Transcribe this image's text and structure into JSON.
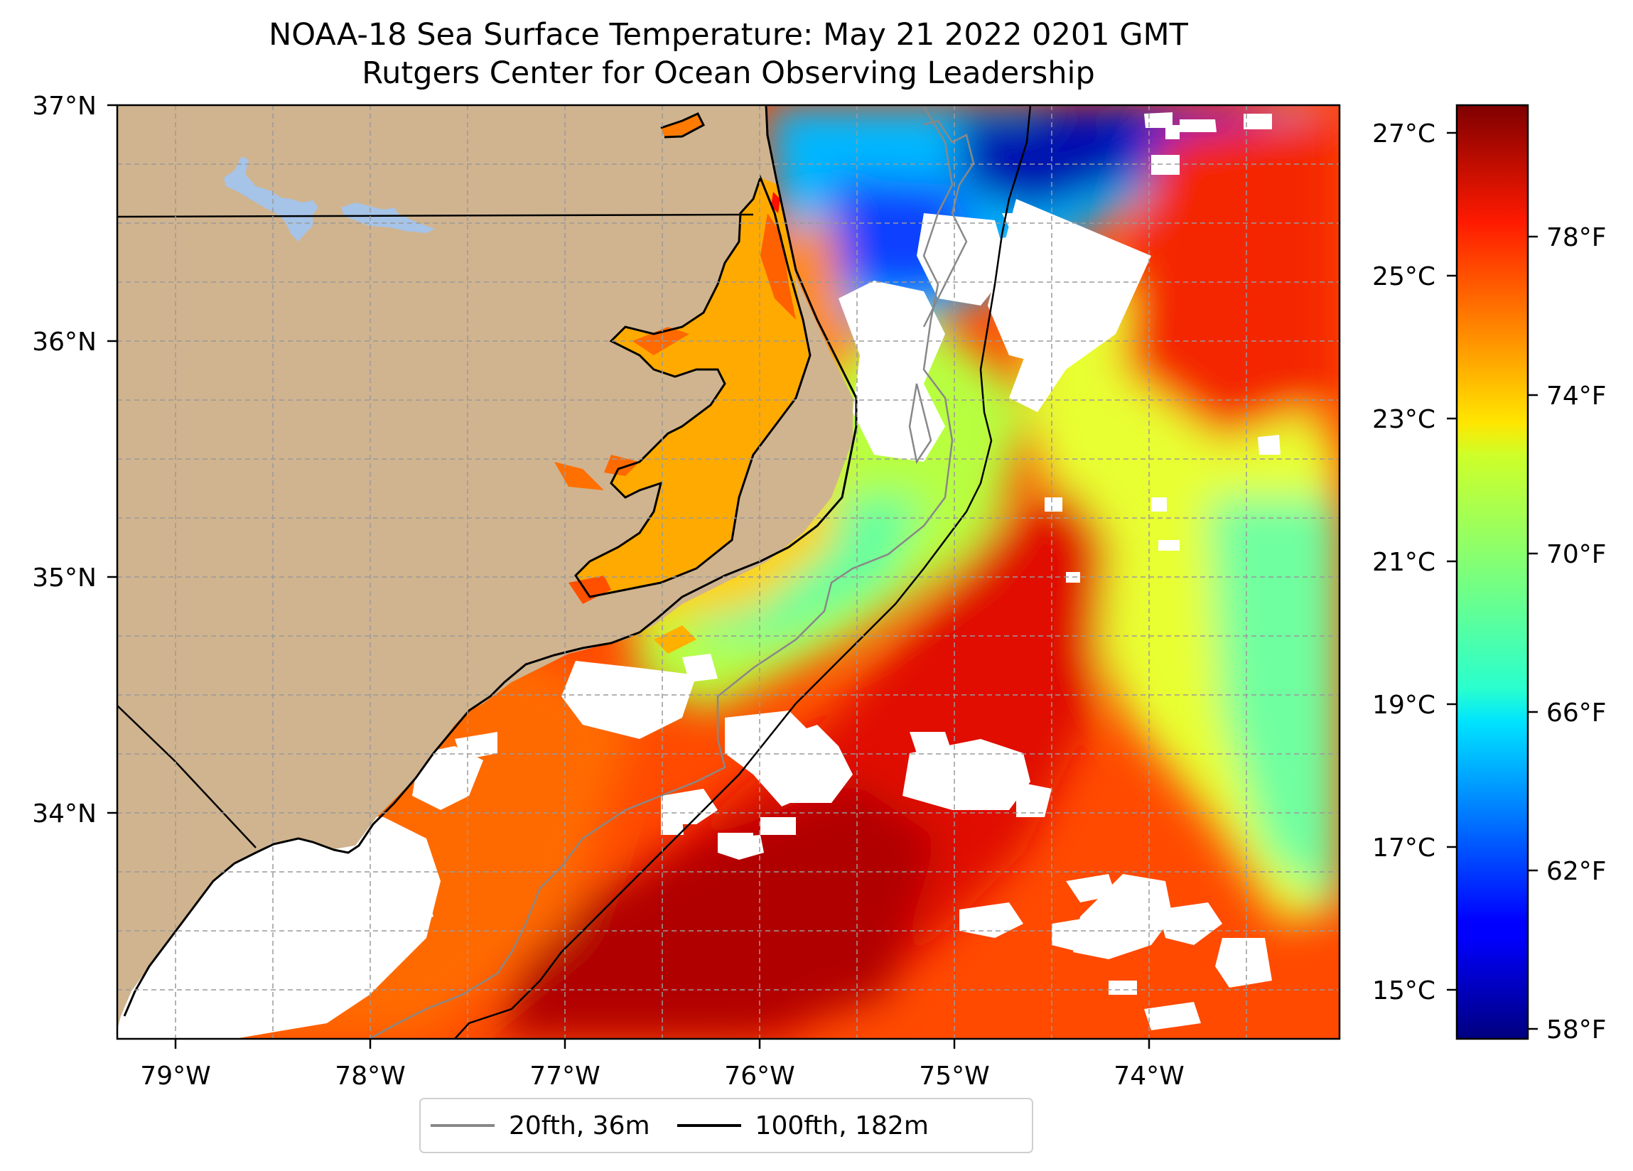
{
  "title": {
    "line1": "NOAA-18 Sea Surface Temperature: May 21 2022 0201 GMT",
    "line2": "Rutgers Center for Ocean Observing Leadership"
  },
  "map": {
    "lon_range": [
      -79.3,
      -73.15
    ],
    "lat_range": [
      33.1,
      37.0
    ],
    "lon_ticks": [
      "79°W",
      "78°W",
      "77°W",
      "76°W",
      "75°W",
      "74°W"
    ],
    "lat_ticks": [
      "37°N",
      "36°N",
      "35°N",
      "34°N"
    ],
    "colors": {
      "land": "#d0b48f",
      "lakes": "#a6c3e8",
      "no_data": "#ffffff",
      "isobath_20fth": "#888888",
      "isobath_100fth": "#000000"
    }
  },
  "colorbar": {
    "celsius_ticks": [
      "27°C",
      "25°C",
      "23°C",
      "21°C",
      "19°C",
      "17°C",
      "15°C"
    ],
    "fahrenheit_ticks": [
      "78°F",
      "74°F",
      "70°F",
      "66°F",
      "62°F",
      "58°F"
    ],
    "colormap": "jet"
  },
  "legend": {
    "entries": [
      {
        "label": "20fth, 36m",
        "color": "#888888"
      },
      {
        "label": "100fth, 182m",
        "color": "#000000"
      }
    ]
  }
}
